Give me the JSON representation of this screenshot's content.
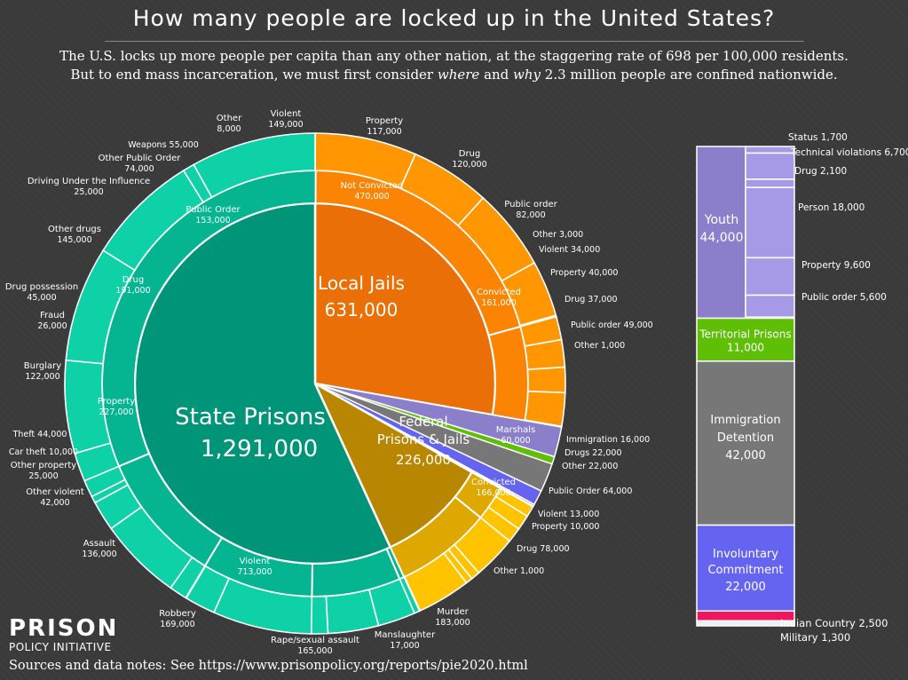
{
  "header": {
    "title": "How many people are locked up in the United States?",
    "subtitle_line1": "The U.S. locks up more people per capita than any other nation, at the staggering rate of 698 per 100,000 residents.",
    "subtitle_line2_a": "But to end mass incarceration, we must first consider ",
    "subtitle_line2_where": "where",
    "subtitle_line2_and": " and ",
    "subtitle_line2_why": "why",
    "subtitle_line2_b": " 2.3 million people are confined nationwide."
  },
  "footer": {
    "logo_line1": "PRISON",
    "logo_line2": "POLICY INITIATIVE",
    "sources": "Sources and data notes: See https://www.prisonpolicy.org/reports/pie2020.html"
  },
  "colors": {
    "state_inner": "#009479",
    "state_mid": "#05b592",
    "state_outer": "#0ed1a8",
    "jail_inner": "#ea6f06",
    "jail_mid": "#fb8404",
    "jail_outer": "#ff9602",
    "fed_inner": "#b98600",
    "fed_mid": "#dea800",
    "fed_outer": "#ffc300",
    "youth": "#8b7fcc",
    "youth_light": "#a69ae6",
    "territorial": "#5fbf06",
    "immigration": "#777777",
    "civil": "#6464f0",
    "indian": "#f0155f",
    "military": "#eeeeee"
  },
  "chart_data": {
    "type": "pie",
    "title": "How many people are locked up in the United States?",
    "unit": "people",
    "main_segments": [
      {
        "name": "Local Jails",
        "value": 631000,
        "value_label": "631,000",
        "groups": [
          {
            "name": "Not Convicted",
            "value": 470000,
            "value_label": "470,000",
            "offenses": [
              {
                "name": "Violent",
                "value": 149000,
                "value_label": "149,000"
              },
              {
                "name": "Property",
                "value": 117000,
                "value_label": "117,000"
              },
              {
                "name": "Drug",
                "value": 120000,
                "value_label": "120,000"
              },
              {
                "name": "Public order",
                "value": 82000,
                "value_label": "82,000"
              },
              {
                "name": "Other",
                "value": 3000,
                "value_label": "3,000"
              }
            ]
          },
          {
            "name": "Convicted",
            "value": 161000,
            "value_label": "161,000",
            "offenses": [
              {
                "name": "Violent",
                "value": 34000,
                "value_label": "34,000"
              },
              {
                "name": "Property",
                "value": 40000,
                "value_label": "40,000"
              },
              {
                "name": "Drug",
                "value": 37000,
                "value_label": "37,000"
              },
              {
                "name": "Public order",
                "value": 49000,
                "value_label": "49,000"
              },
              {
                "name": "Other",
                "value": 1000,
                "value_label": "1,000"
              }
            ]
          }
        ]
      },
      {
        "name": "Federal Prisons & Jails",
        "name_line1": "Federal",
        "name_line2": "Prisons & Jails",
        "value": 226000,
        "value_label": "226,000",
        "groups": [
          {
            "name": "Marshals",
            "value": 60000,
            "value_label": "60,000",
            "offenses": [
              {
                "name": "Immigration",
                "value": 16000,
                "value_label": "16,000"
              },
              {
                "name": "Drugs",
                "value": 22000,
                "value_label": "22,000"
              },
              {
                "name": "Other",
                "value": 22000,
                "value_label": "22,000"
              }
            ]
          },
          {
            "name": "Convicted",
            "value": 166000,
            "value_label": "166,000",
            "offenses": [
              {
                "name": "Public Order",
                "value": 64000,
                "value_label": "64,000"
              },
              {
                "name": "Violent",
                "value": 13000,
                "value_label": "13,000"
              },
              {
                "name": "Property",
                "value": 10000,
                "value_label": "10,000"
              },
              {
                "name": "Drug",
                "value": 78000,
                "value_label": "78,000"
              },
              {
                "name": "Other",
                "value": 1000,
                "value_label": "1,000"
              }
            ]
          }
        ]
      },
      {
        "name": "State Prisons",
        "value": 1291000,
        "value_label": "1,291,000",
        "groups": [
          {
            "name": "Violent",
            "value": 713000,
            "value_label": "713,000",
            "offenses": [
              {
                "name": "Murder",
                "value": 183000,
                "value_label": "183,000"
              },
              {
                "name": "Manslaughter",
                "value": 17000,
                "value_label": "17,000"
              },
              {
                "name": "Rape/sexual assault",
                "value": 165000,
                "value_label": "165,000"
              },
              {
                "name": "Robbery",
                "value": 169000,
                "value_label": "169,000"
              },
              {
                "name": "Assault",
                "value": 136000,
                "value_label": "136,000"
              },
              {
                "name": "Other violent",
                "value": 42000,
                "value_label": "42,000"
              }
            ]
          },
          {
            "name": "Property",
            "value": 227000,
            "value_label": "227,000",
            "offenses": [
              {
                "name": "Other property",
                "value": 25000,
                "value_label": "25,000"
              },
              {
                "name": "Car theft",
                "value": 10000,
                "value_label": "10,000"
              },
              {
                "name": "Theft",
                "value": 44000,
                "value_label": "44,000"
              },
              {
                "name": "Burglary",
                "value": 122000,
                "value_label": "122,000"
              },
              {
                "name": "Fraud",
                "value": 26000,
                "value_label": "26,000"
              }
            ]
          },
          {
            "name": "Drug",
            "value": 191000,
            "value_label": "191,000",
            "offenses": [
              {
                "name": "Drug possession",
                "value": 45000,
                "value_label": "45,000"
              },
              {
                "name": "Other drugs",
                "value": 145000,
                "value_label": "145,000"
              }
            ]
          },
          {
            "name": "Public Order",
            "value": 153000,
            "value_label": "153,000",
            "offenses": [
              {
                "name": "Driving Under the Influence",
                "value": 25000,
                "value_label": "25,000"
              },
              {
                "name": "Other Public Order",
                "value": 74000,
                "value_label": "74,000"
              },
              {
                "name": "Weapons",
                "value": 55000,
                "value_label": "55,000"
              }
            ]
          },
          {
            "name": "Other",
            "value": 8000,
            "value_label": "8,000",
            "offenses": []
          }
        ]
      }
    ],
    "small_systems": [
      {
        "name": "Youth",
        "value": 44000,
        "value_label": "44,000",
        "breakdown": [
          {
            "name": "Status",
            "value": 1700,
            "value_label": "1,700"
          },
          {
            "name": "Technical violations",
            "value": 6700,
            "value_label": "6,700"
          },
          {
            "name": "Drug",
            "value": 2100,
            "value_label": "2,100"
          },
          {
            "name": "Person",
            "value": 18000,
            "value_label": "18,000"
          },
          {
            "name": "Property",
            "value": 9600,
            "value_label": "9,600"
          },
          {
            "name": "Public order",
            "value": 5600,
            "value_label": "5,600"
          }
        ]
      },
      {
        "name": "Territorial Prisons",
        "value": 11000,
        "value_label": "11,000"
      },
      {
        "name": "Immigration Detention",
        "name_line1": "Immigration",
        "name_line2": "Detention",
        "value": 42000,
        "value_label": "42,000"
      },
      {
        "name": "Involuntary Commitment",
        "name_line1": "Involuntary",
        "name_line2": "Commitment",
        "value": 22000,
        "value_label": "22,000"
      },
      {
        "name": "Indian Country",
        "value": 2500,
        "value_label": "2,500"
      },
      {
        "name": "Military",
        "value": 1300,
        "value_label": "1,300"
      }
    ]
  }
}
